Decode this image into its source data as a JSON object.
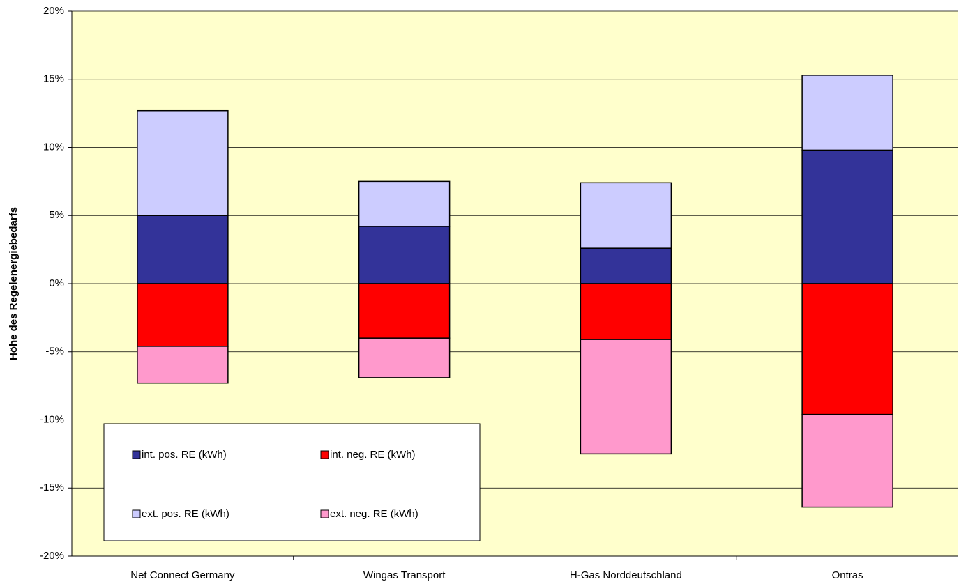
{
  "chart_data": {
    "type": "stacked_bar",
    "y_label": "Höhe des Regelenergiebedarfs",
    "categories": [
      "Net Connect Germany",
      "Wingas Transport",
      "H-Gas Norddeutschland",
      "Ontras"
    ],
    "series": [
      {
        "name": "int. pos. RE (kWh)",
        "color": "#333399",
        "values": [
          5.0,
          4.2,
          2.6,
          9.8
        ]
      },
      {
        "name": "ext. pos. RE (kWh)",
        "color": "#ccccff",
        "values": [
          7.7,
          3.3,
          4.8,
          5.5
        ]
      },
      {
        "name": "int. neg. RE (kWh)",
        "color": "#ff0000",
        "values": [
          -4.6,
          -4.0,
          -4.1,
          -9.6
        ]
      },
      {
        "name": "ext. neg. RE (kWh)",
        "color": "#ff99cc",
        "values": [
          -2.7,
          -2.9,
          -8.4,
          -6.8
        ]
      }
    ],
    "ylim": [
      -20,
      20
    ],
    "yticks": [
      {
        "value": -20,
        "label": "-20%"
      },
      {
        "value": -15,
        "label": "-15%"
      },
      {
        "value": -10,
        "label": "-10%"
      },
      {
        "value": -5,
        "label": "-5%"
      },
      {
        "value": 0,
        "label": "0%"
      },
      {
        "value": 5,
        "label": "5%"
      },
      {
        "value": 10,
        "label": "10%"
      },
      {
        "value": 15,
        "label": "15%"
      },
      {
        "value": 20,
        "label": "20%"
      }
    ],
    "grid": true,
    "legend": "bottom-left",
    "background": "#ffffcc"
  }
}
